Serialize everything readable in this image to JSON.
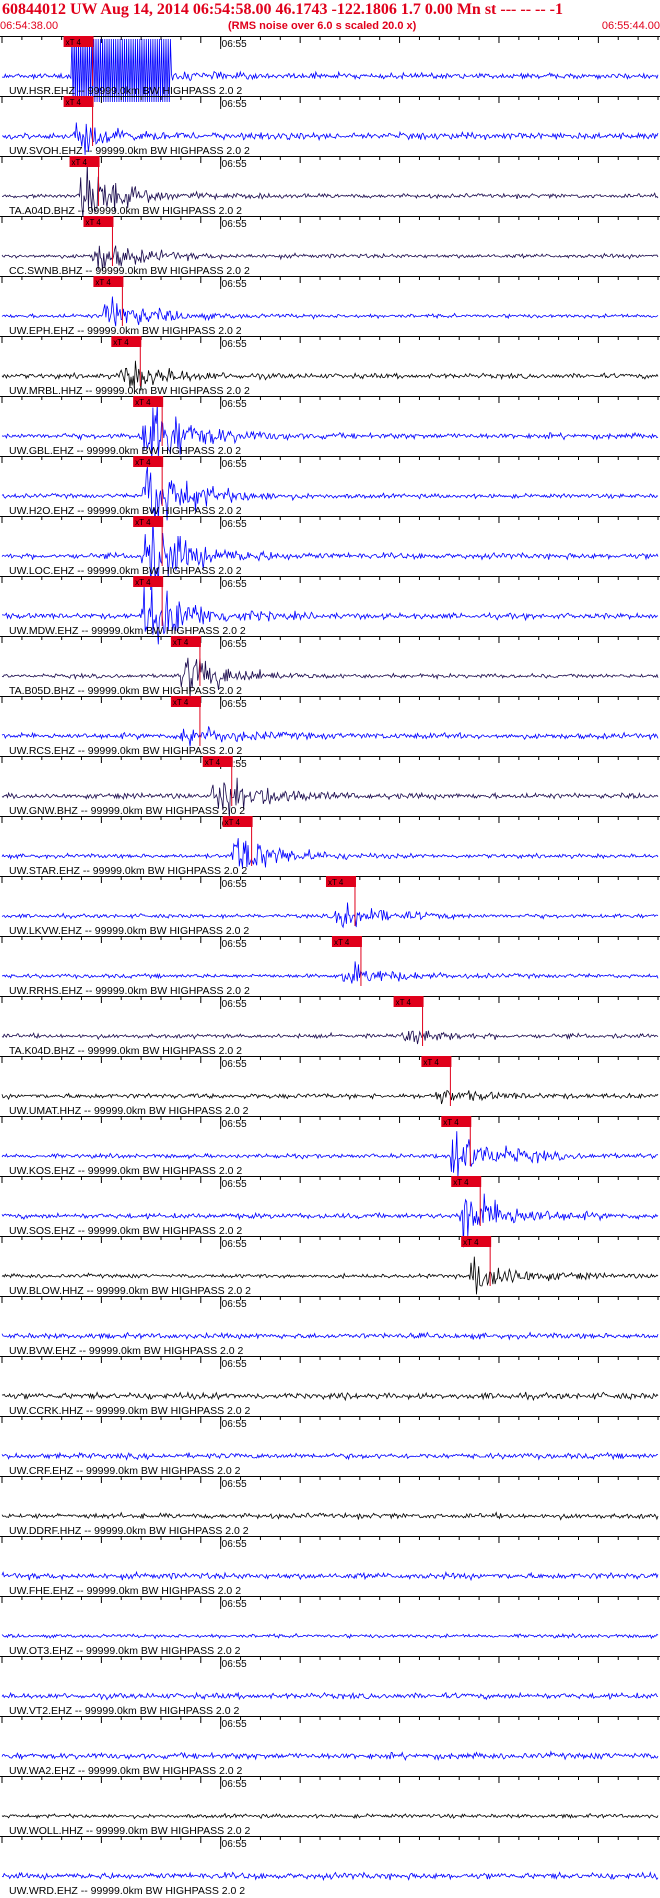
{
  "header": {
    "title": "60844012 UW Aug 14, 2014 06:54:58.00   46.1743 -122.1806  1.7 0.00 Mn st --- -- --   -1",
    "start_time": "06:54:38.00",
    "rms_note": "(RMS noise over 6.0 s scaled 20.0 x)",
    "end_time": "06:55:44.00"
  },
  "chart_data": {
    "type": "line",
    "title": "60844012 UW Aug 14, 2014 06:54:58.00   46.1743 -122.1806  1.7 0.00 Mn st --- -- --   -1",
    "x_range_seconds": [
      0,
      66
    ],
    "minute_marker": {
      "label": "06:55",
      "t": 22
    },
    "pick_label": "xT 4",
    "grid": false,
    "traces": [
      {
        "label": "UW.HSR.EHZ -- 99999.0km BW  HIGHPASS  2.0  2",
        "color": "#0000ff",
        "pick_t": 7.0,
        "amp": 2.0,
        "clipped": true
      },
      {
        "label": "UW.SVOH.EHZ -- 99999.0km BW  HIGHPASS  2.0  2",
        "color": "#0000ff",
        "pick_t": 7.0,
        "amp": 0.6
      },
      {
        "label": "TA.A04D.BHZ -- 99999.0km BW  HIGHPASS  2.0  2",
        "color": "#1a0a4d",
        "pick_t": 7.6,
        "amp": 1.2
      },
      {
        "label": "CC.SWNB.BHZ -- 99999.0km BW  HIGHPASS  2.0  2",
        "color": "#1a0a4d",
        "pick_t": 9.0,
        "amp": 0.7
      },
      {
        "label": "UW.EPH.EHZ -- 99999.0km BW  HIGHPASS  2.0  2",
        "color": "#0000ff",
        "pick_t": 10.0,
        "amp": 0.8
      },
      {
        "label": "UW.MRBL.HHZ -- 99999.0km BW  HIGHPASS  2.0  2",
        "color": "#000000",
        "pick_t": 11.8,
        "amp": 0.7
      },
      {
        "label": "UW.GBL.EHZ -- 99999.0km BW  HIGHPASS  2.0  2",
        "color": "#0000ff",
        "pick_t": 14.0,
        "amp": 1.6
      },
      {
        "label": "UW.H2O.EHZ -- 99999.0km BW  HIGHPASS  2.0  2",
        "color": "#0000ff",
        "pick_t": 14.0,
        "amp": 1.7
      },
      {
        "label": "UW.LOC.EHZ -- 99999.0km BW  HIGHPASS  2.0  2",
        "color": "#0000ff",
        "pick_t": 14.0,
        "amp": 1.7
      },
      {
        "label": "UW.MDW.EHZ -- 99999.0km BW  HIGHPASS  2.0  2",
        "color": "#0000ff",
        "pick_t": 14.0,
        "amp": 1.6
      },
      {
        "label": "TA.B05D.BHZ -- 99999.0km BW  HIGHPASS  2.0  2",
        "color": "#1a0a4d",
        "pick_t": 17.8,
        "amp": 0.9
      },
      {
        "label": "UW.RCS.EHZ -- 99999.0km BW  HIGHPASS  2.0  2",
        "color": "#0000ff",
        "pick_t": 17.8,
        "amp": 0.5
      },
      {
        "label": "UW.GNW.BHZ -- 99999.0km BW  HIGHPASS  2.0  2",
        "color": "#1a0a4d",
        "pick_t": 21.0,
        "amp": 1.2
      },
      {
        "label": "UW.STAR.EHZ -- 99999.0km BW  HIGHPASS  2.0  2",
        "color": "#0000ff",
        "pick_t": 23.0,
        "amp": 1.0
      },
      {
        "label": "UW.LKVW.EHZ -- 99999.0km BW  HIGHPASS  2.0  2",
        "color": "#0000ff",
        "pick_t": 33.4,
        "amp": 0.6
      },
      {
        "label": "UW.RRHS.EHZ -- 99999.0km BW  HIGHPASS  2.0  2",
        "color": "#0000ff",
        "pick_t": 34.0,
        "amp": 0.5
      },
      {
        "label": "TA.K04D.BHZ -- 99999.0km BW  HIGHPASS  2.0  2",
        "color": "#1a0a4d",
        "pick_t": 40.2,
        "amp": 0.3
      },
      {
        "label": "UW.UMAT.HHZ -- 99999.0km BW  HIGHPASS  2.0  2",
        "color": "#000000",
        "pick_t": 43.0,
        "amp": 0.3
      },
      {
        "label": "UW.KOS.EHZ -- 99999.0km BW  HIGHPASS  2.0  2",
        "color": "#0000ff",
        "pick_t": 45.0,
        "amp": 1.2
      },
      {
        "label": "UW.SOS.EHZ -- 99999.0km BW  HIGHPASS  2.0  2",
        "color": "#0000ff",
        "pick_t": 46.0,
        "amp": 1.2
      },
      {
        "label": "UW.BLOW.HHZ -- 99999.0km BW  HIGHPASS  2.0  2",
        "color": "#000000",
        "pick_t": 47.0,
        "amp": 0.8
      },
      {
        "label": "UW.BVW.EHZ -- 99999.0km BW  HIGHPASS  2.0  2",
        "color": "#0000ff",
        "amp": 0
      },
      {
        "label": "UW.CCRK.HHZ -- 99999.0km BW  HIGHPASS  2.0  2",
        "color": "#000000",
        "amp": 0
      },
      {
        "label": "UW.CRF.EHZ -- 99999.0km BW  HIGHPASS  2.0  2",
        "color": "#0000ff",
        "amp": 0
      },
      {
        "label": "UW.DDRF.HHZ -- 99999.0km BW  HIGHPASS  2.0  2",
        "color": "#000000",
        "amp": 0
      },
      {
        "label": "UW.FHE.EHZ -- 99999.0km BW  HIGHPASS  2.0  2",
        "color": "#0000ff",
        "amp": 0
      },
      {
        "label": "UW.OT3.EHZ -- 99999.0km BW  HIGHPASS  2.0  2",
        "color": "#0000ff",
        "amp": 0
      },
      {
        "label": "UW.VT2.EHZ -- 99999.0km BW  HIGHPASS  2.0  2",
        "color": "#0000ff",
        "amp": 0
      },
      {
        "label": "UW.WA2.EHZ -- 99999.0km BW  HIGHPASS  2.0  2",
        "color": "#0000ff",
        "amp": 0
      },
      {
        "label": "UW.WOLL.HHZ -- 99999.0km BW  HIGHPASS  2.0  2",
        "color": "#000000",
        "amp": 0
      },
      {
        "label": "UW.WRD.EHZ -- 99999.0km BW  HIGHPASS  2.0  2",
        "color": "#0000ff",
        "amp": 0
      }
    ]
  }
}
